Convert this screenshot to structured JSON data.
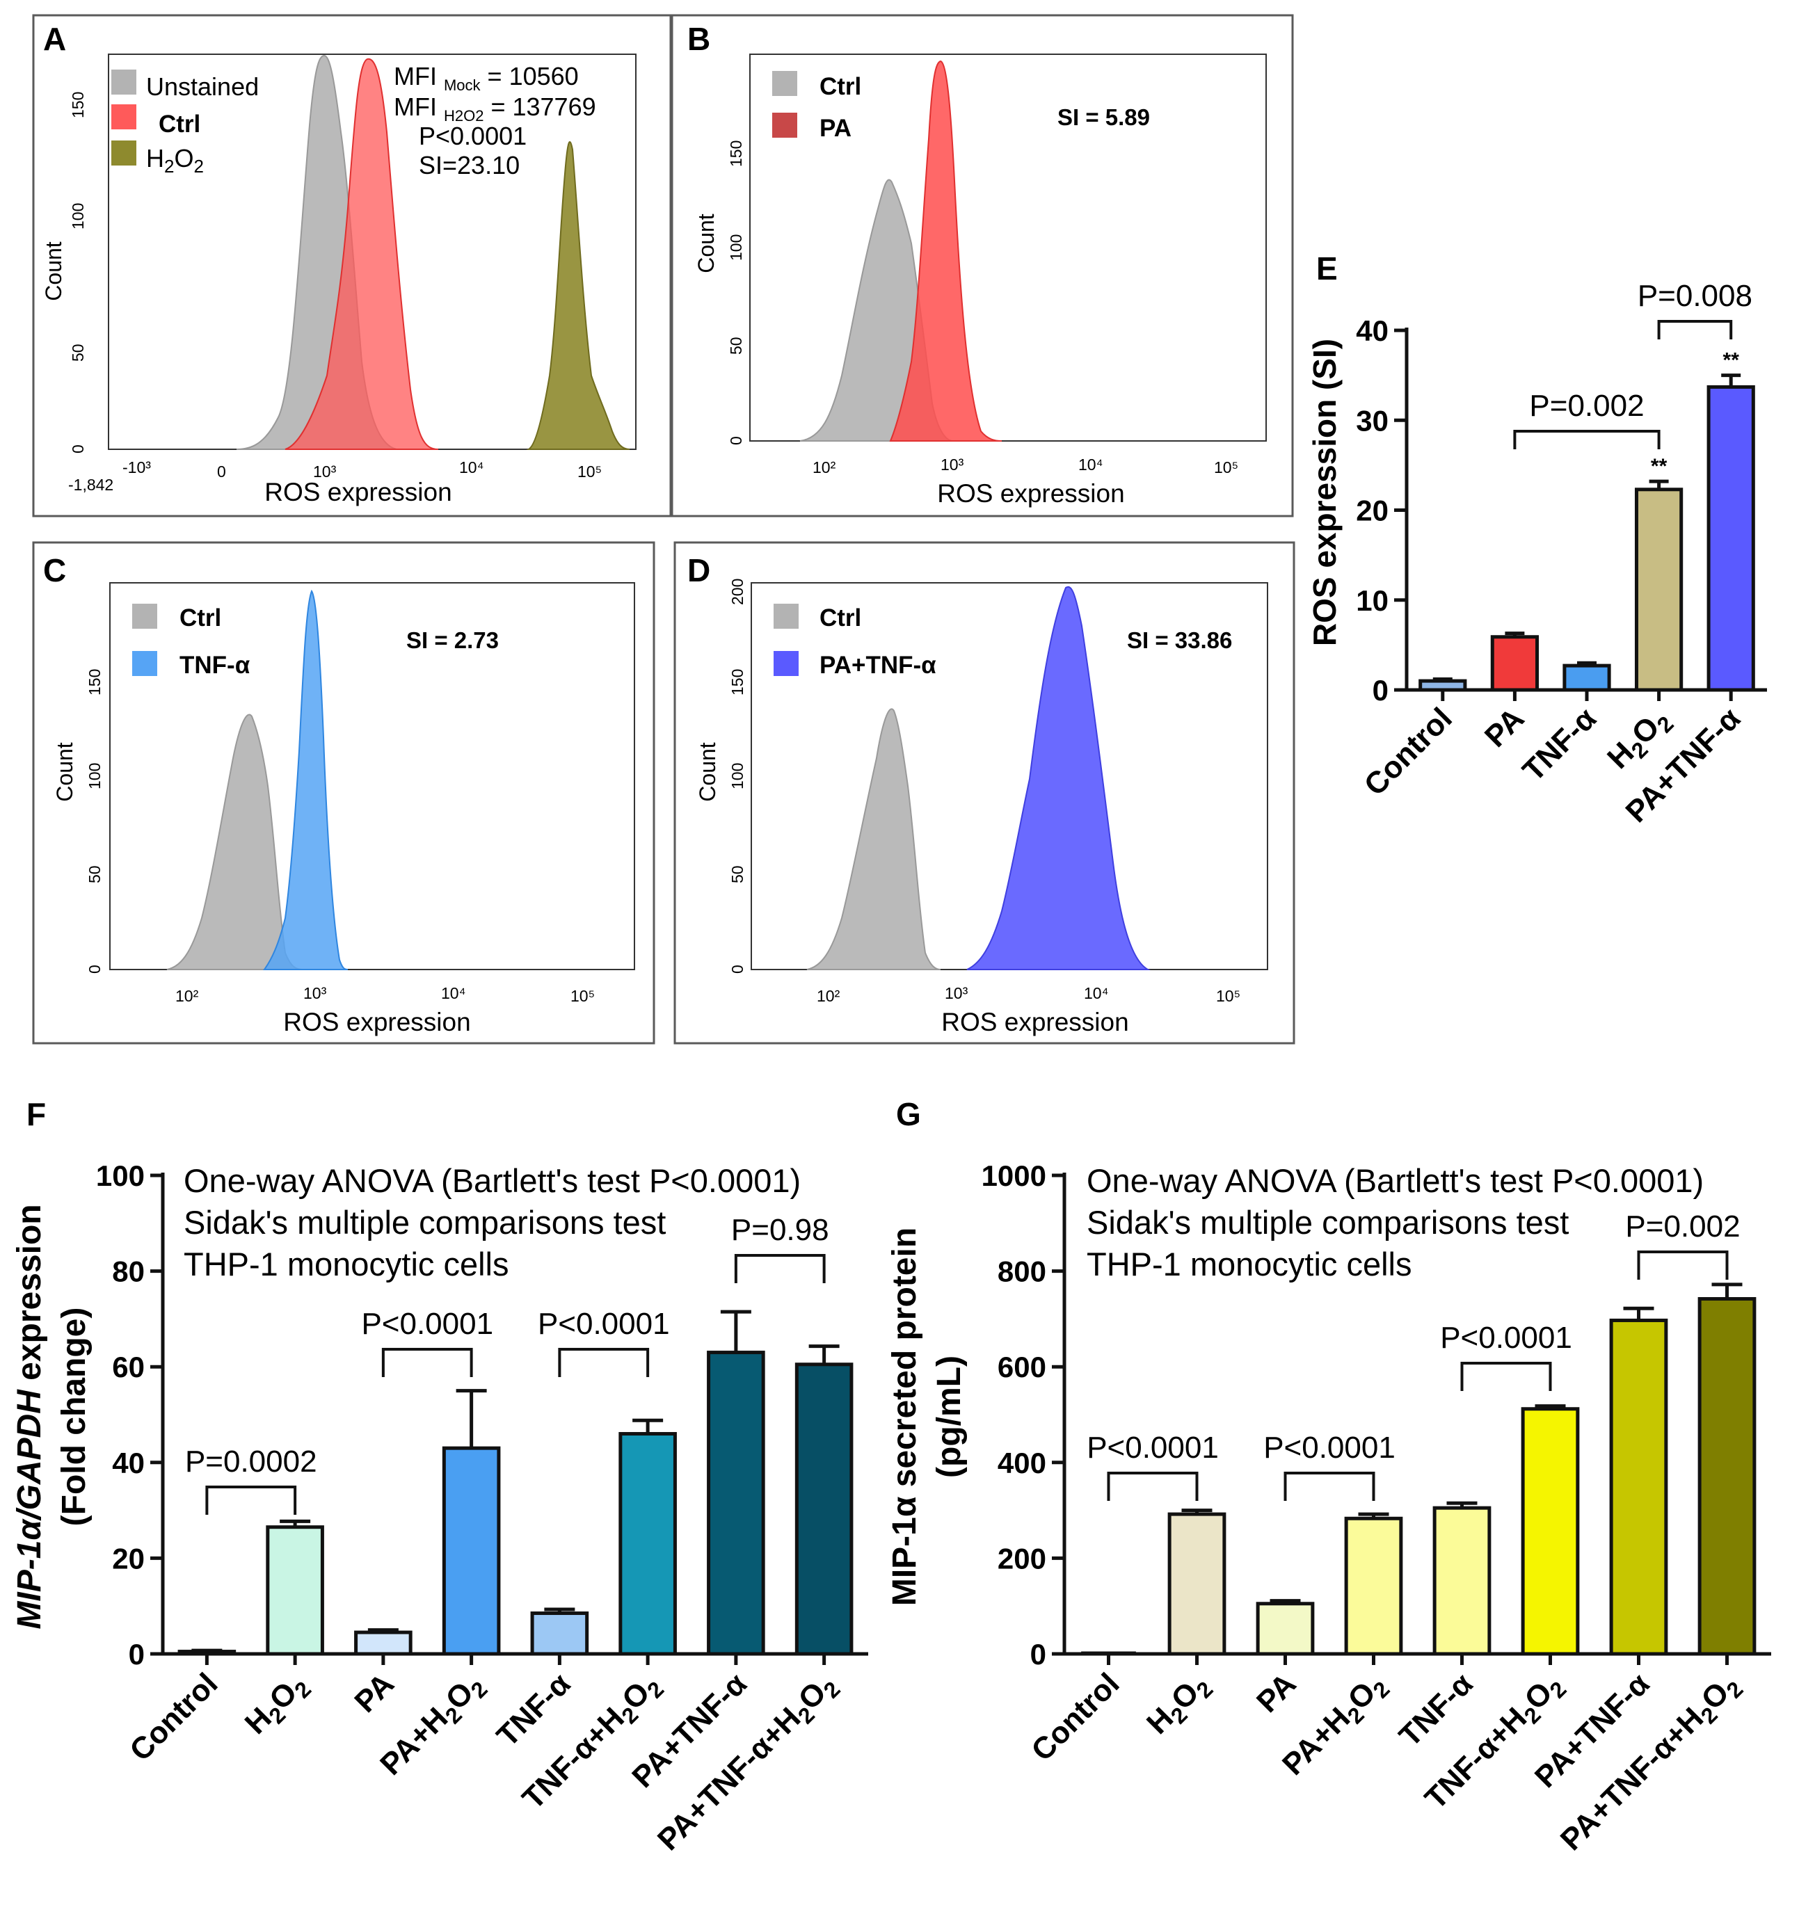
{
  "colors": {
    "ctrl_gray": "#b3b3b3",
    "ctrl_red": "#ff5a5a",
    "h2o2_olive": "#8e8a2e",
    "pa_red": "#ff4d4d",
    "pa_legend": "#c84848",
    "tnf_blue": "#56a4f5",
    "patnf_purple": "#5a5aff",
    "e_control": "#8fb6e6",
    "e_pa": "#f03a3a",
    "e_tnf": "#4a9df0",
    "e_h2o2": "#c8bd84",
    "e_patnf": "#5a5aff"
  },
  "panels": {
    "A": {
      "label": "A",
      "legend": [
        "Unstained",
        "Ctrl",
        "H2O2"
      ],
      "mfi_mock_prefix": "MFI",
      "mfi_mock_sub": "Mock",
      "mfi_mock_value": "= 10560",
      "mfi_h2o2_prefix": "MFI",
      "mfi_h2o2_sub": "H2O2",
      "mfi_h2o2_value": "= 137769",
      "p_text": "P<0.0001",
      "si_text": "SI=23.10",
      "x_label": "ROS expression",
      "y_label": "Count",
      "y_ticks": [
        "0",
        "50",
        "100",
        "150"
      ],
      "x_ticks": [
        "-1,842",
        "-10³",
        "0",
        "10³",
        "10⁴",
        "10⁵"
      ]
    },
    "B": {
      "label": "B",
      "legend": [
        "Ctrl",
        "PA"
      ],
      "si_text": "SI = 5.89",
      "x_label": "ROS expression",
      "y_label": "Count",
      "y_ticks": [
        "0",
        "50",
        "100",
        "150"
      ],
      "x_ticks": [
        "10²",
        "10³",
        "10⁴",
        "10⁵"
      ]
    },
    "C": {
      "label": "C",
      "legend": [
        "Ctrl",
        "TNF-α"
      ],
      "si_text": "SI = 2.73",
      "x_label": "ROS expression",
      "y_label": "Count",
      "y_ticks": [
        "0",
        "50",
        "100",
        "150"
      ],
      "x_ticks": [
        "10²",
        "10³",
        "10⁴",
        "10⁵"
      ]
    },
    "D": {
      "label": "D",
      "legend": [
        "Ctrl",
        "PA+TNF-α"
      ],
      "si_text": "SI = 33.86",
      "x_label": "ROS expression",
      "y_label": "Count",
      "y_ticks": [
        "0",
        "50",
        "100",
        "150",
        "200"
      ],
      "x_ticks": [
        "10²",
        "10³",
        "10⁴",
        "10⁵"
      ]
    },
    "E": {
      "label": "E",
      "y_title": "ROS expression (SI)",
      "sig_a": "P=0.002",
      "sig_b": "P=0.008",
      "stars": "**"
    },
    "F": {
      "label": "F",
      "y_title_italic": "MIP-1α/GAPDH",
      "y_title_rest": " expression",
      "y_title_line2": "(Fold change)",
      "stats_lines": [
        "One-way ANOVA (Bartlett's test P<0.0001)",
        "Sidak's multiple comparisons test",
        "THP-1 monocytic cells"
      ],
      "sig_labels": [
        "P=0.0002",
        "P<0.0001",
        "P<0.0001",
        "P=0.98"
      ]
    },
    "G": {
      "label": "G",
      "y_title_line1": "MIP-1α secreted protein",
      "y_title_line2": "(pg/mL)",
      "stats_lines": [
        "One-way ANOVA (Bartlett's test P<0.0001)",
        "Sidak's multiple comparisons test",
        "THP-1 monocytic cells"
      ],
      "sig_labels": [
        "P<0.0001",
        "P<0.0001",
        "P<0.0001",
        "P=0.002"
      ]
    }
  },
  "chart_data": [
    {
      "panel": "A",
      "type": "histogram",
      "title": "",
      "xlabel": "ROS expression",
      "ylabel": "Count",
      "x_scale": "biexponential",
      "series": [
        {
          "name": "Unstained",
          "color": "#b3b3b3",
          "peak_count": 170
        },
        {
          "name": "Ctrl",
          "color": "#ff5a5a",
          "peak_count": 165,
          "mfi": 10560
        },
        {
          "name": "H2O2",
          "color": "#8e8a2e",
          "peak_count": 140,
          "mfi": 137769
        }
      ],
      "annotations": [
        "MFI Mock = 10560",
        "MFI H2O2 = 137769",
        "P<0.0001",
        "SI=23.10"
      ]
    },
    {
      "panel": "B",
      "type": "histogram",
      "xlabel": "ROS expression",
      "ylabel": "Count",
      "x_scale": "log",
      "series": [
        {
          "name": "Ctrl",
          "color": "#b3b3b3",
          "peak_count": 135
        },
        {
          "name": "PA",
          "color": "#ff4d4d",
          "peak_count": 195
        }
      ],
      "annotations": [
        "SI = 5.89"
      ]
    },
    {
      "panel": "C",
      "type": "histogram",
      "xlabel": "ROS expression",
      "ylabel": "Count",
      "x_scale": "log",
      "series": [
        {
          "name": "Ctrl",
          "color": "#b3b3b3",
          "peak_count": 135
        },
        {
          "name": "TNF-α",
          "color": "#56a4f5",
          "peak_count": 190
        }
      ],
      "annotations": [
        "SI = 2.73"
      ]
    },
    {
      "panel": "D",
      "type": "histogram",
      "xlabel": "ROS expression",
      "ylabel": "Count",
      "x_scale": "log",
      "series": [
        {
          "name": "Ctrl",
          "color": "#b3b3b3",
          "peak_count": 135
        },
        {
          "name": "PA+TNF-α",
          "color": "#5a5aff",
          "peak_count": 200
        }
      ],
      "annotations": [
        "SI = 33.86"
      ]
    },
    {
      "panel": "E",
      "type": "bar",
      "title": "",
      "xlabel": "",
      "ylabel": "ROS expression (SI)",
      "ylim": [
        0,
        40
      ],
      "yticks": [
        0,
        10,
        20,
        30,
        40
      ],
      "categories": [
        "Control",
        "PA",
        "TNF-α",
        "H2O2",
        "PA+TNF-α"
      ],
      "values": [
        1.0,
        5.9,
        2.7,
        22.3,
        33.7
      ],
      "errors": [
        0.2,
        0.4,
        0.3,
        0.9,
        1.3
      ],
      "significance": [
        {
          "from": 1,
          "to": 3,
          "label": "P=0.002"
        },
        {
          "from": 3,
          "to": 4,
          "label": "P=0.008"
        }
      ],
      "stars": {
        "3": "**",
        "4": "**"
      }
    },
    {
      "panel": "F",
      "type": "bar",
      "title": "",
      "ylabel": "MIP-1α/GAPDH expression (Fold change)",
      "ylim": [
        0,
        100
      ],
      "yticks": [
        0,
        20,
        40,
        60,
        80,
        100
      ],
      "categories": [
        "Control",
        "H2O2",
        "PA",
        "PA+H2O2",
        "TNF-α",
        "TNF-α+H2O2",
        "PA+TNF-α",
        "PA+TNF-α+H2O2"
      ],
      "values": [
        0.5,
        26.5,
        4.5,
        43.0,
        8.5,
        46.0,
        63.0,
        60.5
      ],
      "errors": [
        0.2,
        1.2,
        0.5,
        12.0,
        0.8,
        2.8,
        8.5,
        3.8
      ],
      "bar_colors": [
        "#ffffff",
        "#c9f5e4",
        "#d2e6fb",
        "#4a9ff2",
        "#9cc8f4",
        "#1597b5",
        "#075a72",
        "#074f65"
      ],
      "significance": [
        {
          "from": 0,
          "to": 1,
          "label": "P=0.0002"
        },
        {
          "from": 2,
          "to": 3,
          "label": "P<0.0001"
        },
        {
          "from": 4,
          "to": 5,
          "label": "P<0.0001"
        },
        {
          "from": 6,
          "to": 7,
          "label": "P=0.98"
        }
      ]
    },
    {
      "panel": "G",
      "type": "bar",
      "title": "",
      "ylabel": "MIP-1α secreted protein (pg/mL)",
      "ylim": [
        0,
        1000
      ],
      "yticks": [
        0,
        200,
        400,
        600,
        800,
        1000
      ],
      "categories": [
        "Control",
        "H2O2",
        "PA",
        "PA+H2O2",
        "TNF-α",
        "TNF-α+H2O2",
        "PA+TNF-α",
        "PA+TNF-α+H2O2"
      ],
      "values": [
        0,
        292,
        105,
        283,
        305,
        512,
        697,
        742
      ],
      "errors": [
        0,
        8,
        6,
        9,
        10,
        6,
        25,
        30
      ],
      "bar_colors": [
        "#ffffff",
        "#ebe5c8",
        "#f3f9c7",
        "#fbfb9a",
        "#fbfb98",
        "#f5f500",
        "#c6c600",
        "#7f7f00"
      ],
      "significance": [
        {
          "from": 0,
          "to": 1,
          "label": "P<0.0001"
        },
        {
          "from": 2,
          "to": 3,
          "label": "P<0.0001"
        },
        {
          "from": 4,
          "to": 5,
          "label": "P<0.0001"
        },
        {
          "from": 6,
          "to": 7,
          "label": "P=0.002"
        }
      ]
    }
  ]
}
